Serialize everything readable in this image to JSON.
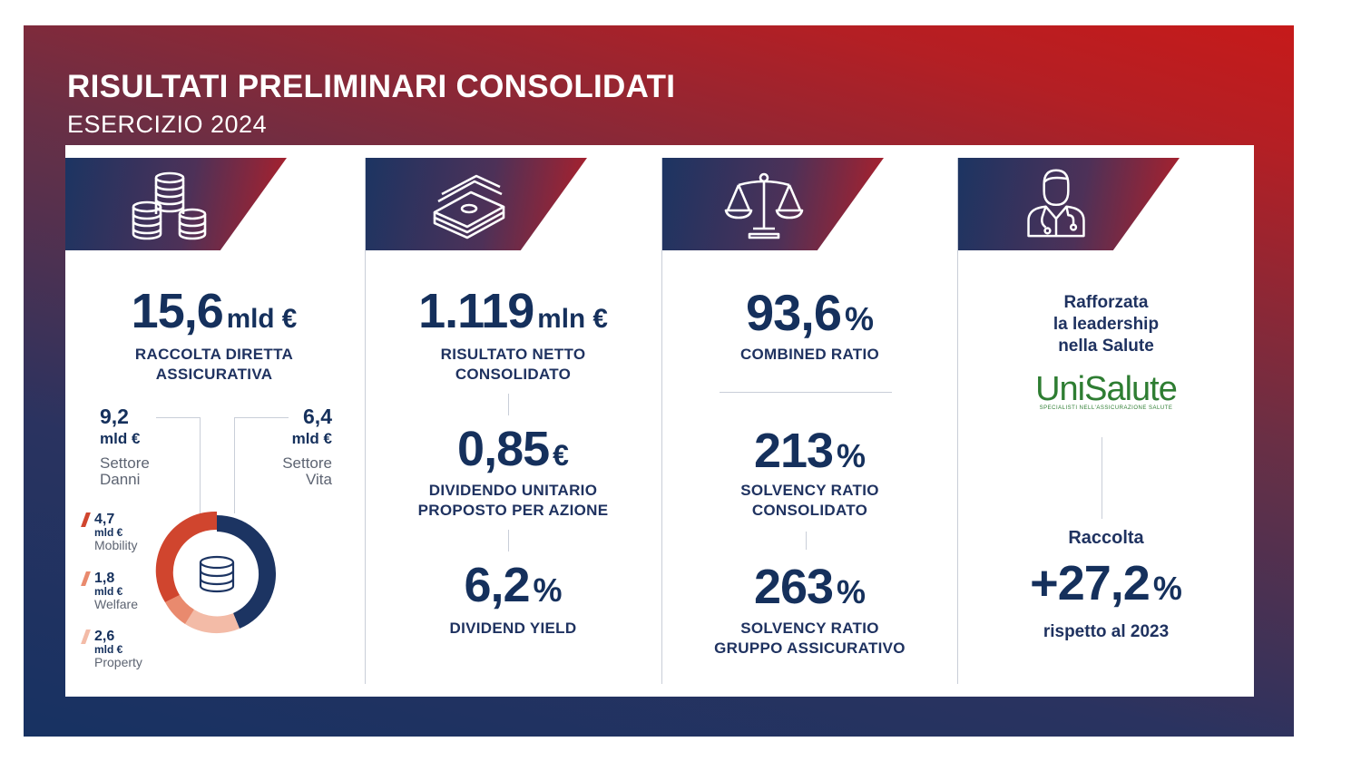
{
  "header": {
    "title": "RISULTATI PRELIMINARI CONSOLIDATI",
    "subtitle": "ESERCIZIO 2024"
  },
  "colors": {
    "navy": "#15305c",
    "red": "#c61a1a",
    "donut_navy": "#1c3462",
    "donut_red": "#d0452e",
    "donut_salmon": "#e98a6e",
    "donut_peach": "#f3bba7"
  },
  "col1": {
    "icon": "coins-stack-icon",
    "value": "15,6",
    "unit": "mld €",
    "label_line1": "RACCOLTA DIRETTA",
    "label_line2": "ASSICURATIVA",
    "danni": {
      "value": "9,2",
      "unit": "mld €",
      "label_line1": "Settore",
      "label_line2": "Danni"
    },
    "vita": {
      "value": "6,4",
      "unit": "mld €",
      "label_line1": "Settore",
      "label_line2": "Vita"
    },
    "segments": [
      {
        "value": "4,7",
        "unit": "mld €",
        "name": "Mobility",
        "color": "#d0452e"
      },
      {
        "value": "1,8",
        "unit": "mld €",
        "name": "Welfare",
        "color": "#e98a6e"
      },
      {
        "value": "2,6",
        "unit": "mld €",
        "name": "Property",
        "color": "#f3bba7"
      }
    ],
    "donut_center_icon": "database-icon"
  },
  "col2": {
    "icon": "money-stack-icon",
    "value": "1.119",
    "unit": "mln €",
    "label_line1": "RISULTATO NETTO",
    "label_line2": "CONSOLIDATO",
    "dividend_value": "0,85",
    "dividend_unit": "€",
    "dividend_label_line1": "DIVIDENDO UNITARIO",
    "dividend_label_line2": "PROPOSTO PER AZIONE",
    "yield_value": "6,2",
    "yield_unit": "%",
    "yield_label": "DIVIDEND YIELD"
  },
  "col3": {
    "icon": "scales-icon",
    "combined_value": "93,6",
    "combined_unit": "%",
    "combined_label": "COMBINED RATIO",
    "solvency_value": "213",
    "solvency_unit": "%",
    "solvency_label_line1": "SOLVENCY RATIO",
    "solvency_label_line2": "CONSOLIDATO",
    "group_value": "263",
    "group_unit": "%",
    "group_label_line1": "SOLVENCY RATIO",
    "group_label_line2": "GRUPPO ASSICURATIVO"
  },
  "col4": {
    "icon": "doctor-icon",
    "text_line1": "Rafforzata",
    "text_line2": "la leadership",
    "text_line3": "nella Salute",
    "logo_word": "UniSalute",
    "logo_tagline": "SPECIALISTI NELL'ASSICURAZIONE SALUTE",
    "raccolta_label": "Raccolta",
    "raccolta_value": "+27,2",
    "raccolta_unit": "%",
    "raccolta_note": "rispetto al 2023"
  }
}
